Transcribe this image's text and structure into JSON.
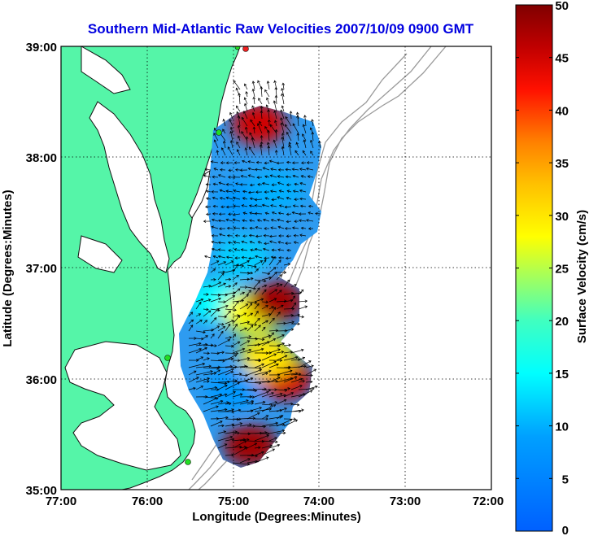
{
  "title": "Southern Mid-Atlantic Raw Velocities 2007/10/09 0900 GMT",
  "xlabel": "Longitude (Degrees:Minutes)",
  "ylabel": "Latitude (Degrees:Minutes)",
  "colorbar_label": "Surface Velocity (cm/s)",
  "x_ticks": [
    "77:00",
    "76:00",
    "75:00",
    "74:00",
    "73:00",
    "72:00"
  ],
  "y_ticks": [
    "39:00",
    "38:00",
    "37:00",
    "36:00",
    "35:00"
  ],
  "colorbar_ticks": [
    "50",
    "45",
    "40",
    "35",
    "30",
    "25",
    "20",
    "15",
    "10",
    "5",
    "0"
  ],
  "colors": {
    "title": "#0000e0",
    "land": "#55f5a8",
    "coast_line": "#111111",
    "bathymetry": "#9a9a9a",
    "station_green": "#22dd22",
    "station_red": "#ee2020",
    "vectors": "#000000",
    "grid": "#000000"
  },
  "chart_data": {
    "type": "heatmap",
    "title": "Southern Mid-Atlantic Raw Velocities 2007/10/09 0900 GMT",
    "xlabel": "Longitude (Degrees:Minutes)",
    "ylabel": "Latitude (Degrees:Minutes)",
    "xlim_deg_west": [
      77,
      72
    ],
    "ylim_deg_north": [
      35,
      39
    ],
    "colorbar": {
      "label": "Surface Velocity (cm/s)",
      "range": [
        0,
        50
      ],
      "colormap": "jet"
    },
    "grid": true,
    "regions": [
      {
        "lon": -74.7,
        "lat": 38.3,
        "speed": 45
      },
      {
        "lon": -74.9,
        "lat": 37.6,
        "speed": 8
      },
      {
        "lon": -74.5,
        "lat": 37.7,
        "speed": 10
      },
      {
        "lon": -75.2,
        "lat": 36.7,
        "speed": 15
      },
      {
        "lon": -74.8,
        "lat": 36.6,
        "speed": 28
      },
      {
        "lon": -74.5,
        "lat": 36.7,
        "speed": 48
      },
      {
        "lon": -74.4,
        "lat": 36.0,
        "speed": 45
      },
      {
        "lon": -74.6,
        "lat": 36.2,
        "speed": 30
      },
      {
        "lon": -75.0,
        "lat": 35.9,
        "speed": 8
      },
      {
        "lon": -74.8,
        "lat": 35.4,
        "speed": 48
      },
      {
        "lon": -74.9,
        "lat": 37.1,
        "speed": 12
      }
    ]
  }
}
